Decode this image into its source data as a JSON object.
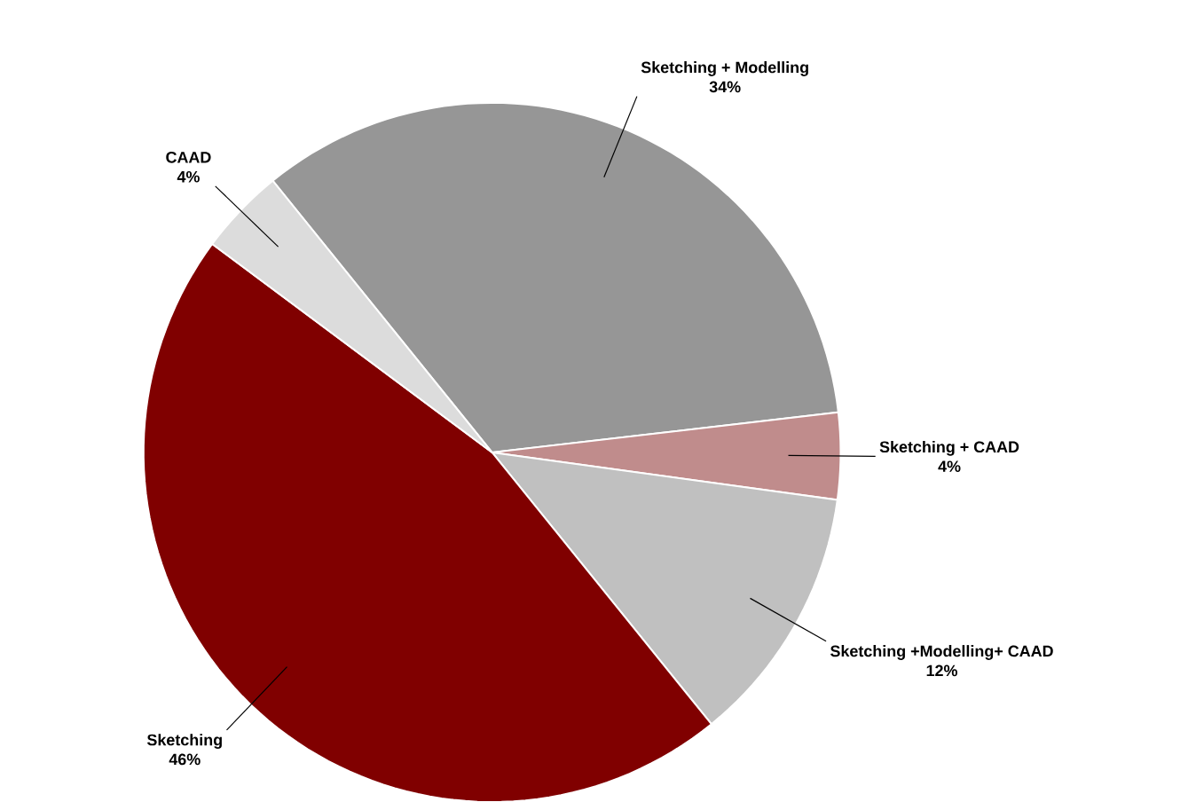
{
  "chart_data": {
    "type": "pie",
    "categories": [
      "Sketching + Modelling",
      "Sketching + CAAD",
      "Sketching +Modelling+ CAAD",
      "Sketching",
      "CAAD"
    ],
    "values": [
      34,
      4,
      12,
      46,
      4
    ],
    "colors": [
      "#969696",
      "#c08c8c",
      "#c0c0c0",
      "#800000",
      "#dcdcdc"
    ],
    "value_labels": [
      "34%",
      "4%",
      "12%",
      "46%",
      "4%"
    ]
  }
}
